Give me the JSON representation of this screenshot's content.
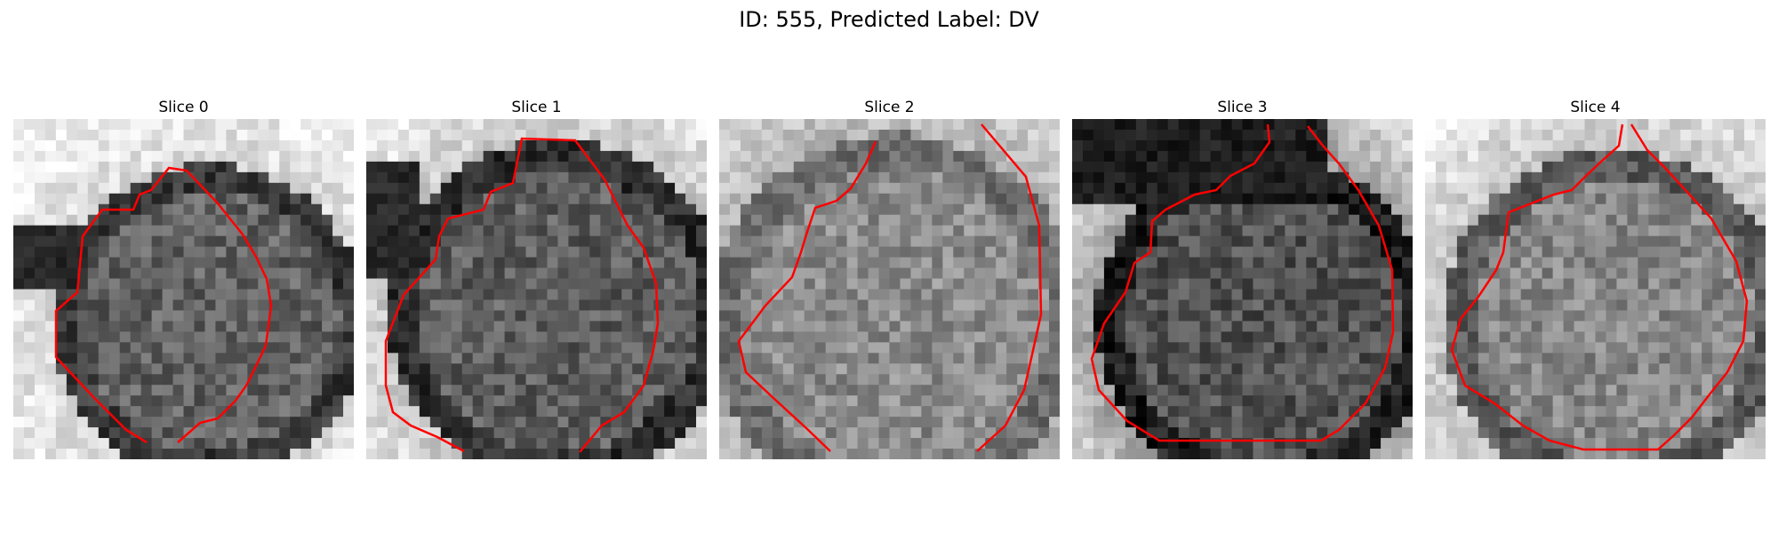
{
  "figure": {
    "title": "ID: 555, Predicted Label: DV"
  },
  "contour_color": "#ff0000",
  "grid_size": 32,
  "slices": [
    {
      "title": "Slice 0",
      "colors": [
        "#3a3a3a",
        "#626262",
        "#d8d8d8",
        "#f0f0f0"
      ]
    },
    {
      "title": "Slice 1",
      "colors": [
        "#2e2e2e",
        "#5e5e5e",
        "#c8c8c8",
        "#eeeeee"
      ]
    },
    {
      "title": "Slice 2",
      "colors": [
        "#6e6e6e",
        "#8c8c8c",
        "#b4b4b4",
        "#dcdcdc"
      ]
    },
    {
      "title": "Slice 3",
      "colors": [
        "#1e1e1e",
        "#525252",
        "#9a9a9a",
        "#e8e8e8"
      ]
    },
    {
      "title": "Slice 4",
      "colors": [
        "#5a5a5a",
        "#888888",
        "#c2c2c2",
        "#eeeeee"
      ]
    }
  ]
}
